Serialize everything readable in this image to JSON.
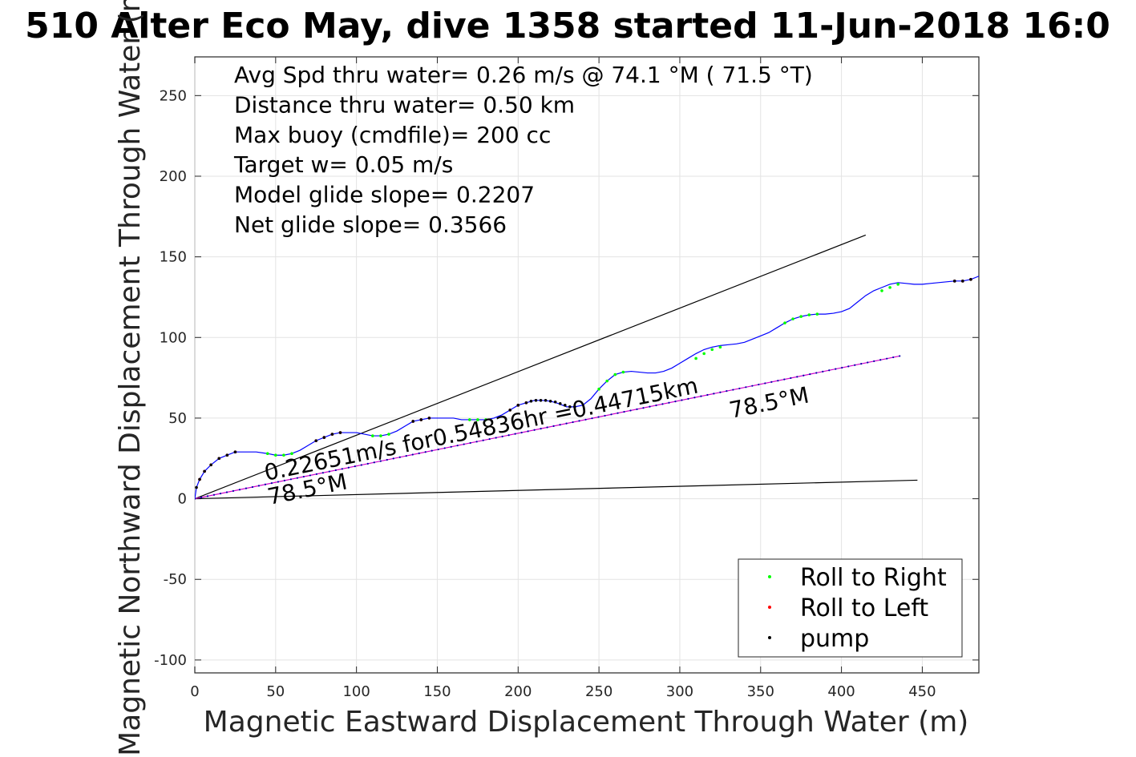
{
  "chart_data": {
    "type": "scatter",
    "title": "510 Alter Eco May, dive 1358 started 11-Jun-2018 16:0",
    "xlabel": "Magnetic Eastward Displacement Through Water (m)",
    "ylabel": "Magnetic Northward Displacement Through Water (m)",
    "xlim": [
      0,
      485
    ],
    "ylim": [
      -108,
      274
    ],
    "xticks": [
      0,
      50,
      100,
      150,
      200,
      250,
      300,
      350,
      400,
      450
    ],
    "yticks": [
      -100,
      -50,
      0,
      50,
      100,
      150,
      200,
      250
    ],
    "grid": true,
    "legend_position": "bottom-right",
    "info_lines": [
      "Avg Spd thru water=  0.26 m/s @  74.1 °M ( 71.5 °T)",
      "Distance thru water=  0.50 km",
      "Max buoy (cmdfile)= 200 cc",
      "Target w= 0.05 m/s",
      "Model glide slope= 0.2207",
      "Net glide slope= 0.3566"
    ],
    "annotations": [
      {
        "text": "0.22651m/s for0.54836hr =0.44715km",
        "angle_deg": 11.5
      },
      {
        "text": "78.5°M",
        "angle_deg": 11.5
      },
      {
        "text": "78.5°M",
        "angle_deg": 11.5
      }
    ],
    "track": {
      "name": "track",
      "color": "#0000ff",
      "x": [
        0,
        1,
        3,
        6,
        10,
        15,
        20,
        25,
        30,
        38,
        45,
        50,
        55,
        60,
        65,
        70,
        75,
        80,
        85,
        90,
        95,
        100,
        105,
        110,
        115,
        120,
        125,
        130,
        135,
        140,
        145,
        150,
        155,
        160,
        165,
        170,
        175,
        180,
        185,
        190,
        195,
        200,
        205,
        210,
        215,
        220,
        225,
        230,
        235,
        240,
        245,
        250,
        255,
        260,
        265,
        270,
        275,
        280,
        285,
        290,
        295,
        300,
        305,
        310,
        315,
        320,
        325,
        330,
        335,
        340,
        345,
        350,
        355,
        360,
        365,
        370,
        375,
        380,
        385,
        390,
        395,
        400,
        405,
        410,
        415,
        420,
        425,
        430,
        435,
        440,
        445,
        450,
        455,
        460,
        465,
        470,
        475,
        480,
        485
      ],
      "y": [
        0,
        7,
        12,
        17,
        21,
        25,
        27,
        29,
        29,
        29,
        28,
        27,
        27,
        28,
        30,
        33,
        36,
        38,
        40,
        41,
        41,
        41,
        40,
        39,
        39,
        40,
        42,
        45,
        48,
        49,
        50,
        50,
        50,
        50,
        49,
        49,
        49,
        49,
        50,
        52,
        55,
        58,
        59.5,
        61,
        61,
        60.5,
        59,
        57,
        57,
        58,
        62,
        68,
        73,
        77,
        78.5,
        79,
        78.5,
        78,
        78,
        79,
        81,
        84,
        87,
        90,
        92.5,
        94,
        95,
        95.5,
        96,
        97,
        99,
        101,
        103,
        106,
        109,
        111.5,
        113,
        114,
        114.5,
        114.5,
        115,
        116,
        118,
        122,
        126,
        129,
        131,
        133,
        134,
        133.5,
        133,
        133,
        133.5,
        134,
        134.5,
        135,
        135,
        136,
        138
      ]
    },
    "reference_lines": [
      {
        "name": "black-upper",
        "color": "#000000",
        "x": [
          0,
          415
        ],
        "y": [
          0,
          163.5
        ]
      },
      {
        "name": "black-lower",
        "color": "#000000",
        "x": [
          0,
          447
        ],
        "y": [
          0,
          11.5
        ]
      },
      {
        "name": "magenta-heading",
        "color": "#cc00cc",
        "x": [
          0,
          436
        ],
        "y": [
          0,
          88.5
        ]
      }
    ],
    "series": [
      {
        "name": "Roll to Right",
        "color": "#00ff00",
        "marker": "dot",
        "x": [
          45,
          50,
          55,
          60,
          110,
          115,
          120,
          170,
          175,
          180,
          250,
          255,
          260,
          265,
          310,
          315,
          320,
          325,
          365,
          370,
          375,
          380,
          385,
          425,
          430,
          435
        ],
        "y": [
          28,
          27,
          27,
          28,
          39,
          39,
          40,
          49,
          49,
          49,
          68,
          73,
          77,
          78.5,
          87,
          90,
          92.5,
          94,
          109,
          111.5,
          113,
          114,
          114.5,
          129,
          131,
          133
        ]
      },
      {
        "name": "Roll to Left",
        "color": "#ff0000",
        "marker": "dot",
        "x": [
          3,
          6,
          10,
          15,
          20,
          25,
          75,
          80,
          85,
          90,
          135,
          140,
          145,
          195,
          200,
          205,
          470,
          475,
          480
        ],
        "y": [
          12,
          17,
          21,
          25,
          27,
          29,
          36,
          38,
          40,
          41,
          48,
          49,
          50,
          55,
          58,
          59.5,
          135,
          135,
          136
        ]
      },
      {
        "name": "pump",
        "color": "#000000",
        "marker": "dot",
        "x": [
          1,
          3,
          6,
          10,
          15,
          20,
          25,
          75,
          80,
          85,
          90,
          135,
          140,
          145,
          195,
          200,
          205,
          208,
          211,
          214,
          217,
          220,
          223,
          226,
          229,
          232,
          235,
          470,
          475,
          480
        ],
        "y": [
          7,
          12,
          17,
          21,
          25,
          27,
          29,
          36,
          38,
          40,
          41,
          48,
          49,
          50,
          55,
          58,
          59.5,
          60.5,
          61,
          61,
          61,
          60.5,
          60,
          59,
          58,
          57,
          57,
          135,
          135,
          136
        ]
      }
    ]
  }
}
